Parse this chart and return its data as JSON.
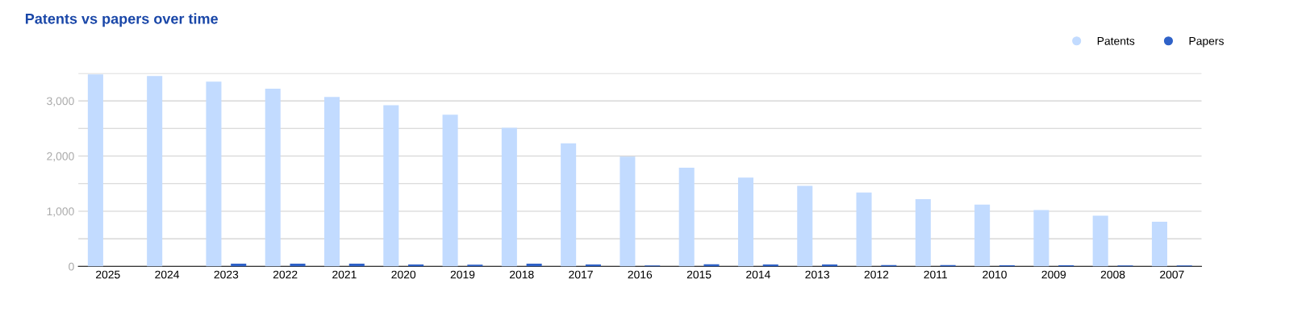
{
  "chart_data": {
    "type": "bar",
    "title": "Patents vs papers over time",
    "categories": [
      "2025",
      "2024",
      "2023",
      "2022",
      "2021",
      "2020",
      "2019",
      "2018",
      "2017",
      "2016",
      "2015",
      "2014",
      "2013",
      "2012",
      "2011",
      "2010",
      "2009",
      "2008",
      "2007"
    ],
    "series": [
      {
        "name": "Patents",
        "color": "#c2dbff",
        "values": [
          3480,
          3450,
          3350,
          3220,
          3070,
          2920,
          2750,
          2510,
          2230,
          1990,
          1790,
          1610,
          1460,
          1340,
          1220,
          1120,
          1020,
          920,
          810
        ]
      },
      {
        "name": "Papers",
        "color": "#2f62c8",
        "values": [
          0,
          0,
          50,
          50,
          50,
          35,
          30,
          50,
          35,
          15,
          40,
          35,
          35,
          25,
          25,
          20,
          20,
          15,
          15
        ]
      }
    ],
    "ylim": [
      0,
      3500
    ],
    "yticks": [
      0,
      {
        "value": 500,
        "label": null
      },
      "1,000",
      {
        "value": 1500,
        "label": null
      },
      {
        "value": 2000,
        "label": "2,000"
      },
      {
        "value": 2500,
        "label": null
      },
      {
        "value": 3000,
        "label": "3,000"
      },
      {
        "value": 3500,
        "label": null
      }
    ],
    "grid": "y",
    "legend": "top right"
  }
}
